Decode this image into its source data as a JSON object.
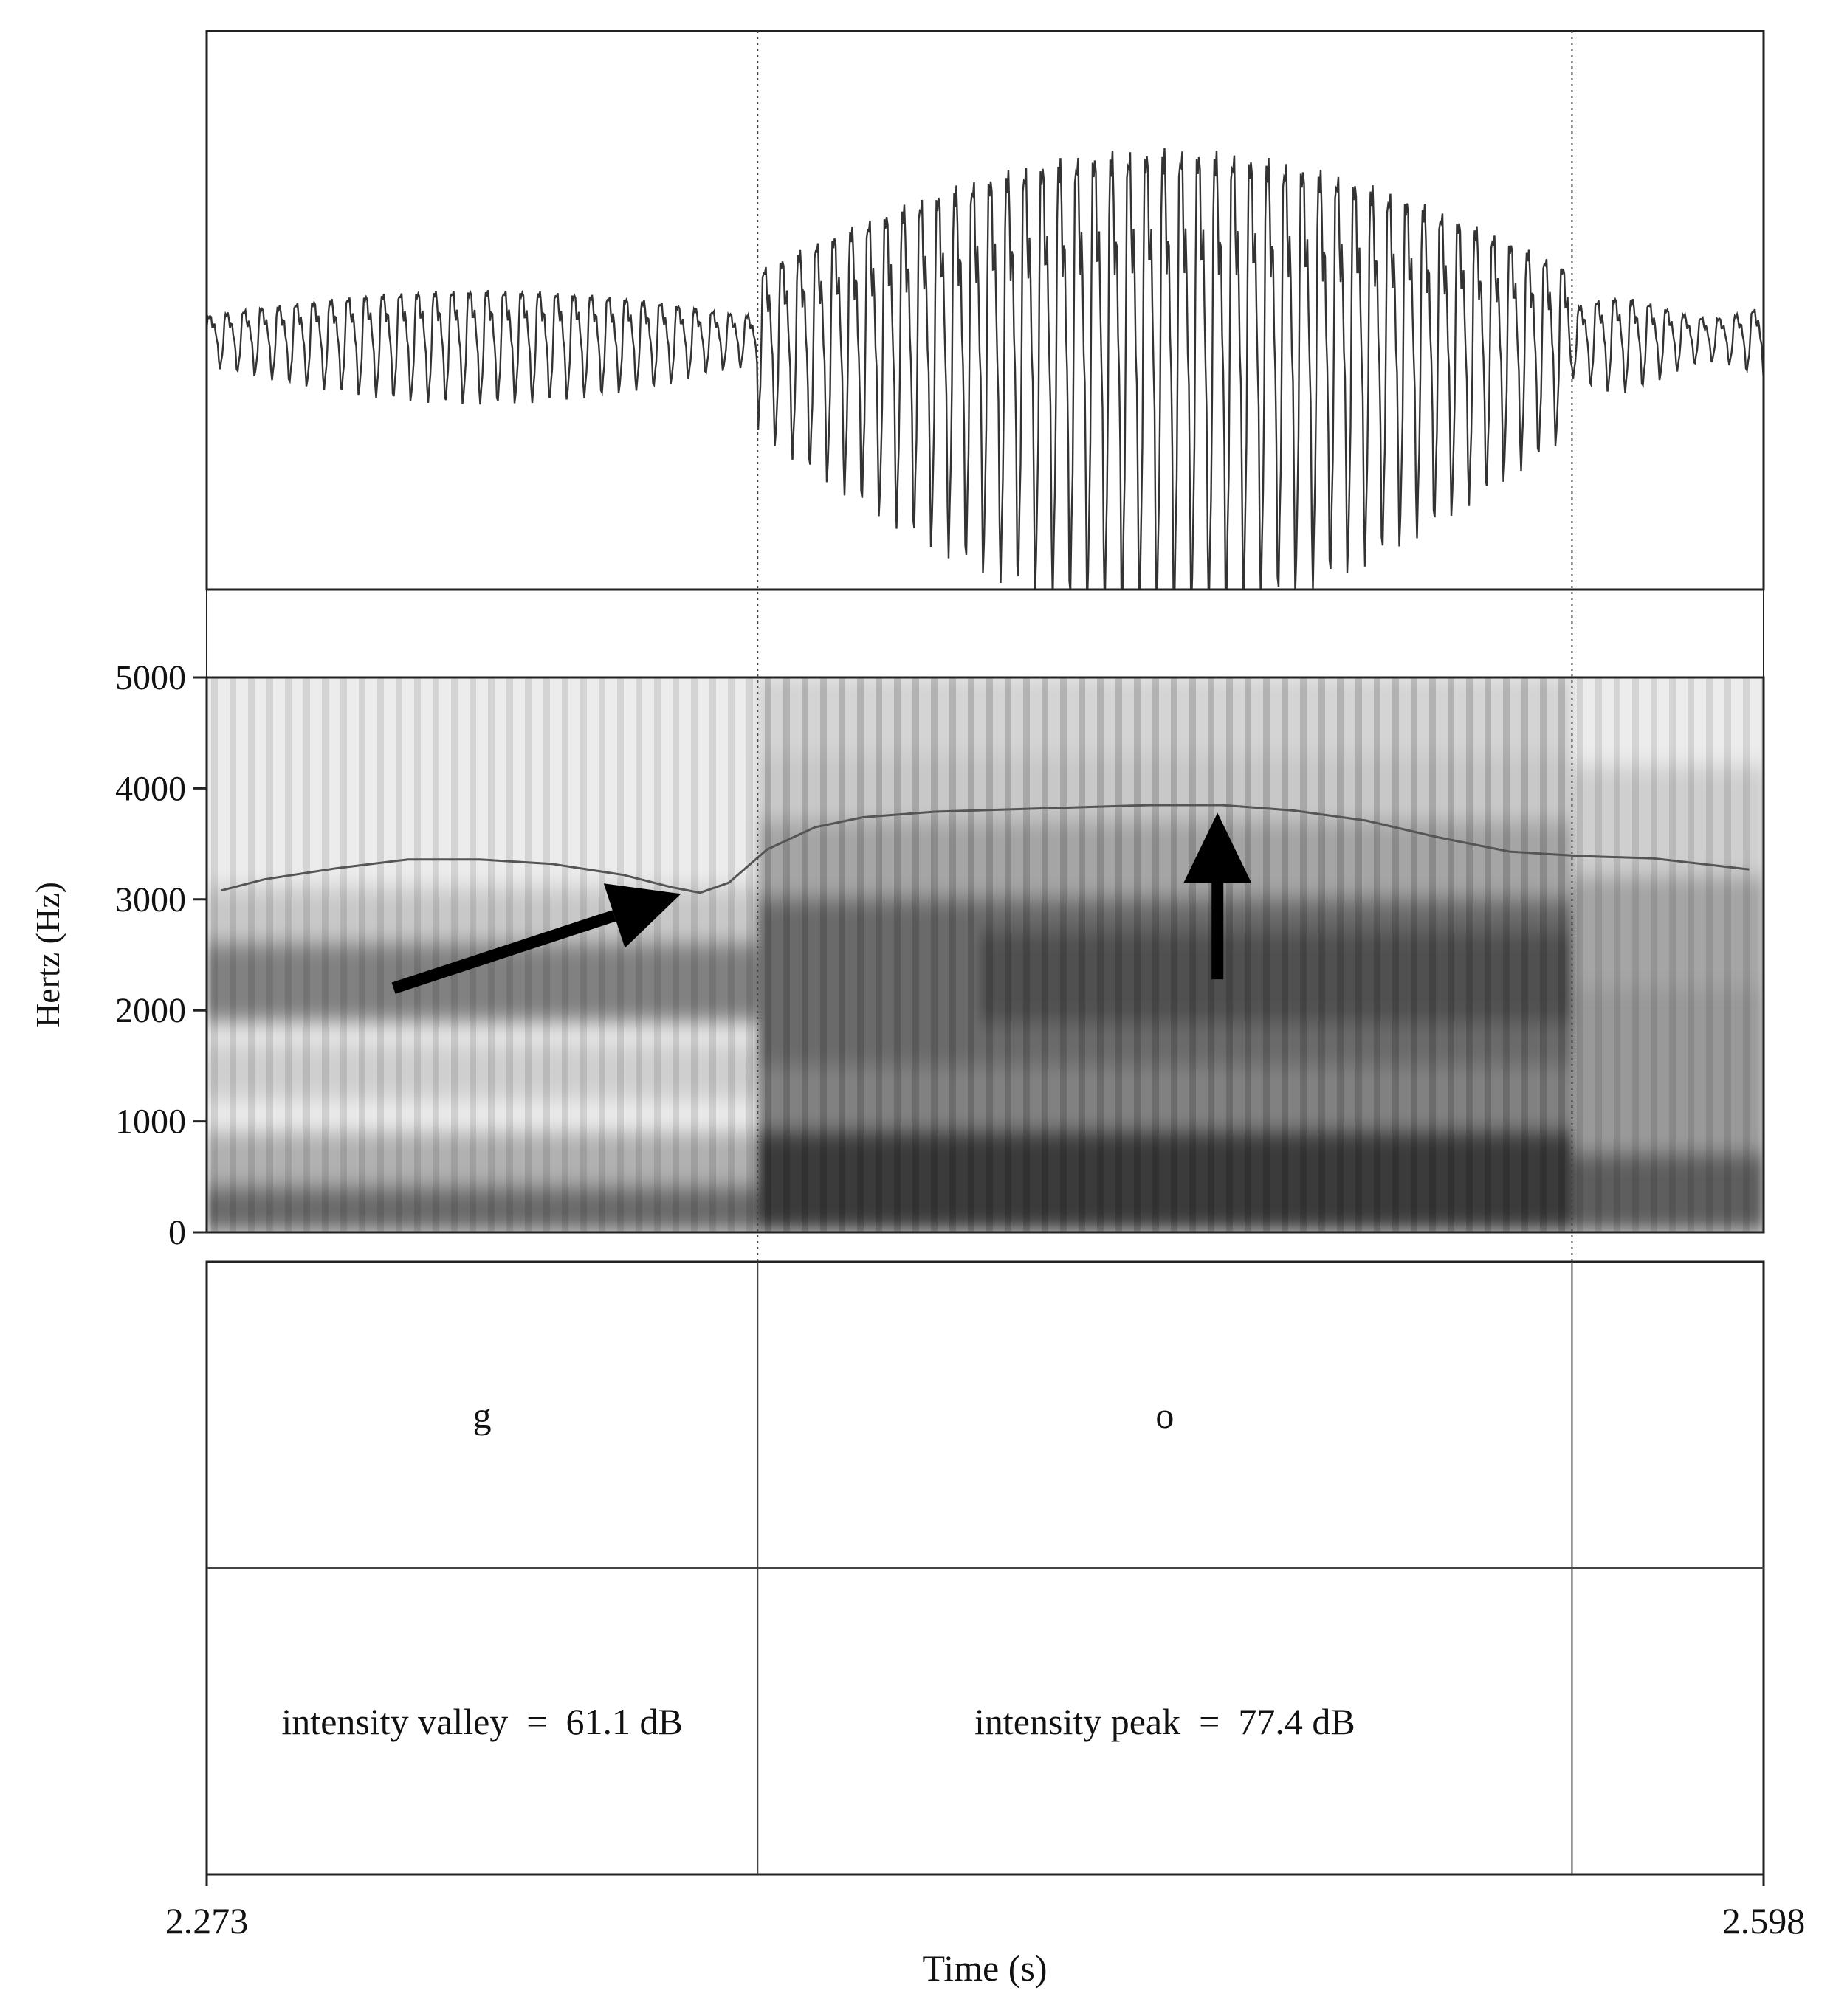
{
  "chart_data": {
    "type": "line",
    "title": "",
    "xlabel": "Time (s)",
    "ylabel": "Hertz (Hz)",
    "xlim": [
      2.273,
      2.598
    ],
    "x_tick_labels": [
      "2.273",
      "2.598"
    ],
    "ylim": [
      0,
      5000
    ],
    "y_ticks": [
      0,
      1000,
      2000,
      3000,
      4000,
      5000
    ],
    "y_tick_labels": [
      "0",
      "1000",
      "2000",
      "3000",
      "4000",
      "5000"
    ],
    "grid": false,
    "legend": "none",
    "boundaries": [
      2.388,
      2.558
    ],
    "intensity_contour": {
      "x": [
        2.276,
        2.285,
        2.3,
        2.315,
        2.33,
        2.345,
        2.36,
        2.37,
        2.376,
        2.382,
        2.39,
        2.4,
        2.41,
        2.425,
        2.44,
        2.455,
        2.47,
        2.485,
        2.5,
        2.515,
        2.53,
        2.545,
        2.56,
        2.575,
        2.595
      ],
      "y": [
        3080,
        3180,
        3280,
        3360,
        3360,
        3320,
        3220,
        3110,
        3060,
        3150,
        3450,
        3650,
        3740,
        3790,
        3810,
        3830,
        3850,
        3850,
        3800,
        3710,
        3560,
        3430,
        3390,
        3370,
        3270
      ]
    },
    "tiers": [
      {
        "intervals": [
          "g",
          "o",
          ""
        ]
      },
      {
        "intervals": [
          "intensity valley  =  61.1 dB",
          "intensity peak  =  77.4 dB",
          ""
        ]
      }
    ],
    "annotations": [
      {
        "type": "arrow",
        "from": [
          2.312,
          2200
        ],
        "to": [
          2.372,
          3050
        ]
      },
      {
        "type": "arrow",
        "from": [
          2.484,
          2280
        ],
        "to": [
          2.484,
          3780
        ]
      }
    ]
  },
  "colors": {
    "axis": "#222222",
    "waveform": "#333333",
    "contour": "#555555",
    "arrow": "#000000"
  }
}
